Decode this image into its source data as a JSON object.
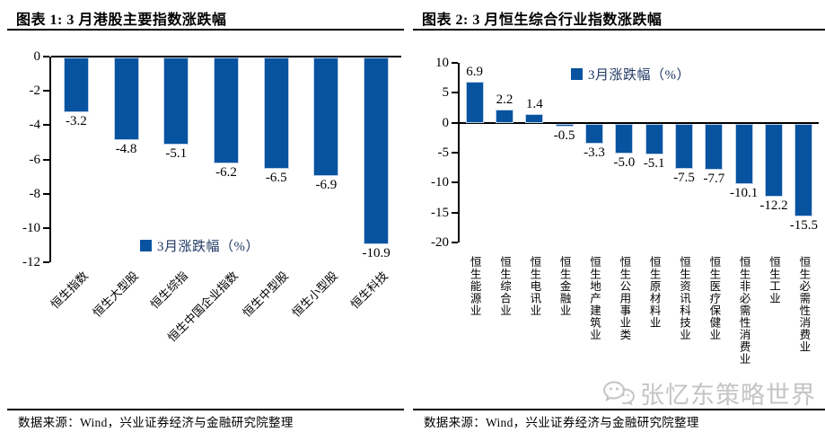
{
  "figures": [
    {
      "title": "图表 1: 3 月港股主要指数涨跌幅",
      "source": "数据来源：Wind，兴业证券经济与金融研究院整理"
    },
    {
      "title": "图表 2: 3 月恒生综合行业指数涨跌幅",
      "source": "数据来源：Wind，兴业证券经济与金融研究院整理"
    }
  ],
  "watermark": {
    "label": "张忆东策略世界",
    "icon": "wechat-icon",
    "color": "#c4c4c4"
  },
  "chart_data": [
    {
      "type": "bar",
      "title": "3 月港股主要指数涨跌幅",
      "legend": "3月涨跌幅（%）",
      "legend_position": "inside-bottom",
      "categories": [
        "恒生指数",
        "恒生大型股",
        "恒生综指",
        "恒生中国企业指数",
        "恒生中型股",
        "恒生小型股",
        "恒生科技"
      ],
      "values": [
        -3.2,
        -4.8,
        -5.1,
        -6.2,
        -6.5,
        -6.9,
        -10.9
      ],
      "ylim": [
        -12,
        0
      ],
      "yticks": [
        0,
        -2,
        -4,
        -6,
        -8,
        -10,
        -12
      ],
      "xlabel": "",
      "ylabel": "",
      "grid": false,
      "bar_color": "#0853A0",
      "category_label_rotation": 45
    },
    {
      "type": "bar",
      "title": "3 月恒生综合行业指数涨跌幅",
      "legend": "3月涨跌幅（%）",
      "legend_position": "inside-top",
      "categories": [
        "恒生能源业",
        "恒生综合业",
        "恒生电讯业",
        "恒生金融业",
        "恒生地产建筑业",
        "恒生公用事业类",
        "恒生原材料业",
        "恒生资讯科技业",
        "恒生医疗保健业",
        "恒生非必需性消费业",
        "恒生工业",
        "恒生必需性消费业"
      ],
      "values": [
        6.9,
        2.2,
        1.4,
        -0.5,
        -3.3,
        -5.0,
        -5.1,
        -7.5,
        -7.7,
        -10.1,
        -12.2,
        -15.5
      ],
      "ylim": [
        -20,
        10
      ],
      "yticks": [
        10,
        5,
        0,
        -5,
        -10,
        -15,
        -20
      ],
      "xlabel": "",
      "ylabel": "",
      "grid": false,
      "bar_color": "#0853A0",
      "category_label_rotation": 90
    }
  ]
}
